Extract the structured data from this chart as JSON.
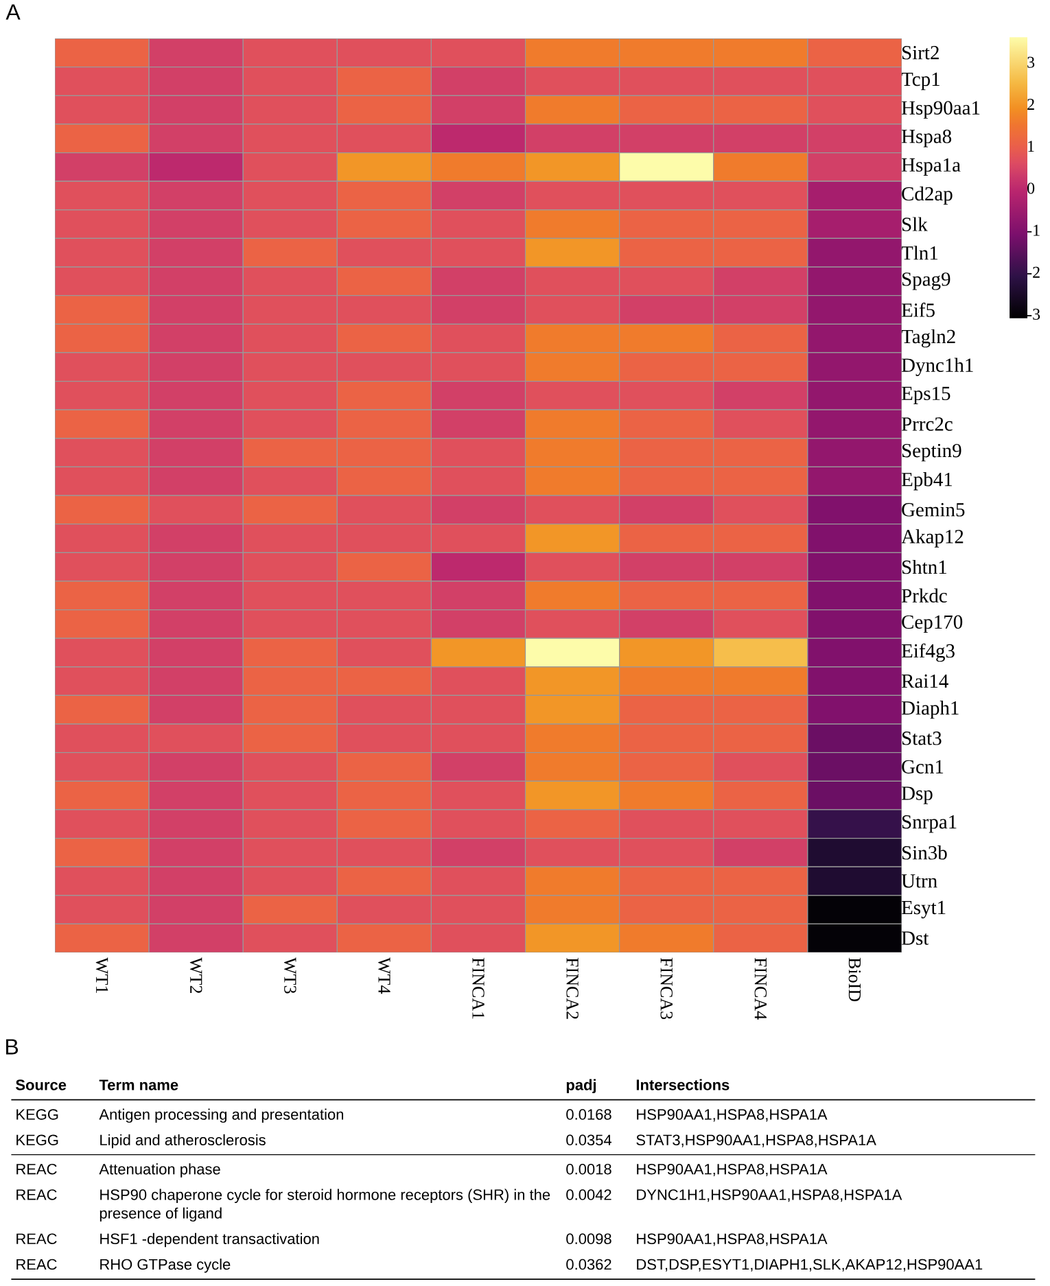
{
  "chart_data": [
    {
      "type": "heatmap",
      "title": "A",
      "categories": [
        "WT1",
        "WT2",
        "WT3",
        "WT4",
        "FINCA1",
        "FINCA2",
        "FINCA3",
        "FINCA4",
        "BioID"
      ],
      "y_categories": [
        "Sirt2",
        "Tcp1",
        "Hsp90aa1",
        "Hspa8",
        "Hspa1a",
        "Cd2ap",
        "Slk",
        "Tln1",
        "Spag9",
        "Eif5",
        "Tagln2",
        "Dync1h1",
        "Eps15",
        "Prrc2c",
        "Septin9",
        "Epb41",
        "Gemin5",
        "Akap12",
        "Shtn1",
        "Prkdc",
        "Cep170",
        "Eif4g3",
        "Rai14",
        "Diaph1",
        "Stat3",
        "Gcn1",
        "Dsp",
        "Snrpa1",
        "Sin3b",
        "Utrn",
        "Esyt1",
        "Dst"
      ],
      "cells": [
        [
          1.1,
          0.4,
          0.7,
          0.7,
          0.7,
          1.6,
          1.6,
          1.6,
          1.1
        ],
        [
          0.7,
          0.4,
          0.7,
          1.1,
          0.4,
          0.7,
          0.7,
          0.7,
          0.7
        ],
        [
          0.7,
          0.4,
          0.7,
          1.1,
          0.4,
          1.6,
          1.1,
          1.1,
          0.7
        ],
        [
          1.1,
          0.4,
          0.7,
          0.7,
          0.0,
          0.4,
          0.4,
          0.4,
          0.4
        ],
        [
          0.4,
          0.0,
          0.7,
          2.0,
          1.6,
          2.0,
          3.6,
          1.6,
          0.4
        ],
        [
          0.7,
          0.4,
          0.7,
          1.1,
          0.4,
          0.7,
          0.7,
          0.7,
          -0.4
        ],
        [
          0.7,
          0.4,
          0.7,
          1.1,
          0.7,
          1.6,
          1.1,
          1.1,
          -0.4
        ],
        [
          0.7,
          0.4,
          1.1,
          0.7,
          0.7,
          2.0,
          1.1,
          1.1,
          -0.7
        ],
        [
          0.7,
          0.4,
          0.7,
          1.1,
          0.4,
          0.7,
          0.7,
          0.4,
          -0.7
        ],
        [
          1.1,
          0.4,
          0.7,
          0.7,
          0.4,
          0.7,
          0.4,
          0.4,
          -0.7
        ],
        [
          1.1,
          0.4,
          0.7,
          1.1,
          0.7,
          1.6,
          1.6,
          1.1,
          -0.7
        ],
        [
          0.7,
          0.4,
          0.7,
          0.7,
          0.7,
          1.6,
          1.1,
          1.1,
          -0.7
        ],
        [
          0.7,
          0.4,
          0.7,
          1.1,
          0.4,
          0.7,
          0.7,
          0.4,
          -0.7
        ],
        [
          1.1,
          0.4,
          0.7,
          1.1,
          0.4,
          1.6,
          1.1,
          0.7,
          -0.7
        ],
        [
          0.7,
          0.4,
          1.1,
          1.1,
          0.7,
          1.6,
          1.1,
          1.1,
          -0.7
        ],
        [
          0.7,
          0.4,
          0.7,
          1.1,
          0.7,
          1.6,
          1.1,
          1.1,
          -0.7
        ],
        [
          1.1,
          0.7,
          1.1,
          0.7,
          0.4,
          0.7,
          0.4,
          0.7,
          -1.0
        ],
        [
          0.7,
          0.4,
          0.7,
          0.7,
          0.7,
          2.0,
          1.1,
          1.1,
          -1.0
        ],
        [
          0.7,
          0.4,
          0.7,
          1.1,
          0.0,
          0.7,
          0.4,
          0.4,
          -1.0
        ],
        [
          1.1,
          0.4,
          0.7,
          0.7,
          0.4,
          1.6,
          1.1,
          1.1,
          -1.0
        ],
        [
          1.1,
          0.4,
          0.7,
          0.7,
          0.4,
          0.7,
          0.4,
          0.7,
          -1.0
        ],
        [
          0.7,
          0.4,
          1.1,
          0.7,
          2.0,
          3.6,
          2.0,
          2.6,
          -1.0
        ],
        [
          0.7,
          0.4,
          1.1,
          1.1,
          0.7,
          2.0,
          1.6,
          1.6,
          -1.0
        ],
        [
          1.1,
          0.4,
          1.1,
          0.7,
          0.7,
          2.0,
          1.1,
          1.1,
          -1.0
        ],
        [
          0.7,
          0.7,
          1.1,
          0.7,
          0.7,
          1.6,
          1.1,
          1.1,
          -1.3
        ],
        [
          0.7,
          0.4,
          0.7,
          1.1,
          0.4,
          1.6,
          1.1,
          0.7,
          -1.3
        ],
        [
          1.1,
          0.4,
          0.7,
          1.1,
          0.7,
          2.0,
          1.6,
          1.1,
          -1.3
        ],
        [
          0.7,
          0.4,
          0.7,
          1.1,
          0.7,
          1.1,
          0.7,
          0.7,
          -2.0
        ],
        [
          1.1,
          0.4,
          0.7,
          0.7,
          0.4,
          0.7,
          0.7,
          0.4,
          -2.4
        ],
        [
          0.7,
          0.4,
          0.7,
          1.1,
          0.7,
          1.6,
          1.1,
          1.1,
          -2.4
        ],
        [
          0.7,
          0.4,
          1.1,
          0.7,
          0.7,
          1.6,
          1.1,
          1.1,
          -3.0
        ],
        [
          1.1,
          0.4,
          0.7,
          1.1,
          0.7,
          2.0,
          1.6,
          1.1,
          -3.0
        ]
      ],
      "clim": [
        -3.1,
        3.6
      ],
      "cticks": [
        -3,
        -2,
        -1,
        0,
        1,
        2,
        3
      ]
    },
    {
      "type": "other",
      "title": "B",
      "annotations": [
        "Source",
        "Term name",
        "padj",
        "Intersections",
        "KEGG",
        "Antigen processing and presentation",
        "0.0168",
        "HSP90AA1,HSPA8,HSPA1A",
        "KEGG",
        "Lipid and atherosclerosis",
        "0.0354",
        "STAT3,HSP90AA1,HSPA8,HSPA1A",
        "REAC",
        "Attenuation phase",
        "0.0018",
        "HSP90AA1,HSPA8,HSPA1A",
        "REAC",
        "HSP90 chaperone cycle for steroid hormone receptors (SHR) in the presence of ligand",
        "0.0042",
        "DYNC1H1,HSP90AA1,HSPA8,HSPA1A",
        "REAC",
        "HSF1 -dependent transactivation",
        "0.0098",
        "HSP90AA1,HSPA8,HSPA1A",
        "REAC",
        "RHO GTPase cycle",
        "0.0362",
        "DST,DSP,ESYT1,DIAPH1,SLK,AKAP12,HSP90AA1"
      ]
    }
  ]
}
